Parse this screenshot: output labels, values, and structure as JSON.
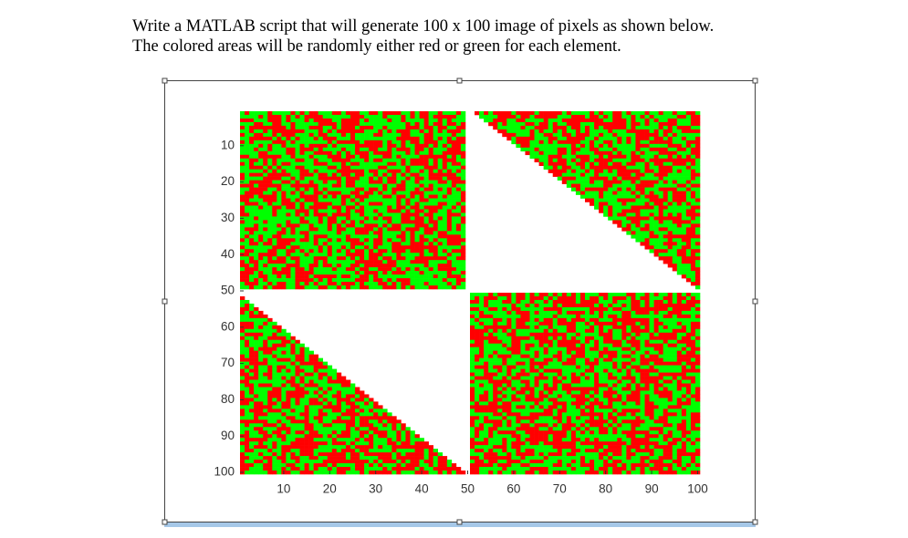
{
  "instructions": [
    "Write a MATLAB script that will generate 100 x 100 image of pixels as shown below.",
    "The colored areas will be randomly either red or green for each element."
  ],
  "chart_data": {
    "type": "image",
    "xlim": [
      0.5,
      100.5
    ],
    "ylim": [
      0.5,
      100.5
    ],
    "xticks": [
      10,
      20,
      30,
      40,
      50,
      60,
      70,
      80,
      90,
      100
    ],
    "yticks": [
      10,
      20,
      30,
      40,
      50,
      60,
      70,
      80,
      90,
      100
    ],
    "colors": [
      "#ff0000",
      "#00ff00"
    ]
  }
}
